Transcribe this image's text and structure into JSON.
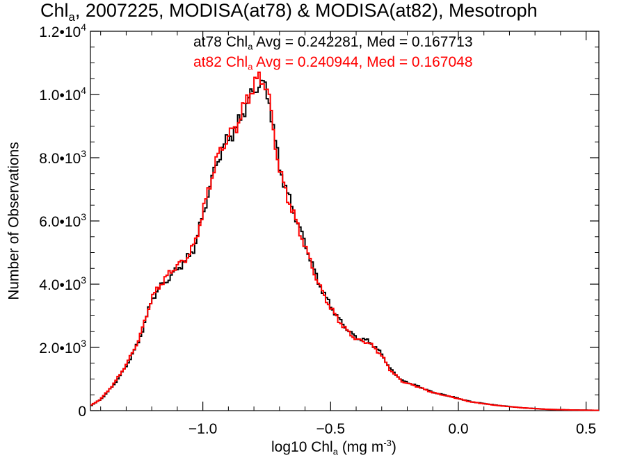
{
  "chart_data": {
    "type": "line",
    "title": {
      "main": "Chl",
      "sub": "a",
      "rest": ", 2007225, MODISA(at78) & MODISA(at82), Mesotroph"
    },
    "xlabel": {
      "main": "log10 Chl",
      "sub": "a",
      "rest": " (mg m",
      "sup": "-3",
      "end": ")"
    },
    "ylabel": "Number of Observations",
    "xlim": [
      -1.44,
      0.55
    ],
    "ylim": [
      0,
      12000
    ],
    "x_ticks": [
      {
        "value": -1.0,
        "label": "−1.0"
      },
      {
        "value": -0.5,
        "label": "−0.5"
      },
      {
        "value": 0.0,
        "label": "0.0"
      },
      {
        "value": 0.5,
        "label": "0.5"
      }
    ],
    "y_ticks": [
      {
        "value": 0,
        "label": "0"
      },
      {
        "value": 2000,
        "label": "2.0•10",
        "exp": "3"
      },
      {
        "value": 4000,
        "label": "4.0•10",
        "exp": "3"
      },
      {
        "value": 6000,
        "label": "6.0•10",
        "exp": "3"
      },
      {
        "value": 8000,
        "label": "8.0•10",
        "exp": "3"
      },
      {
        "value": 10000,
        "label": "1.0•10",
        "exp": "4"
      },
      {
        "value": 12000,
        "label": "1.2•10",
        "exp": "4"
      }
    ],
    "grid": false,
    "legend": "top-center",
    "stats": [
      {
        "name": "at78",
        "pre": "at78 Chl",
        "sub": "a",
        "post": " Avg = 0.242281, Med = 0.167713",
        "color": "#000000"
      },
      {
        "name": "at82",
        "pre": "at82 Chl",
        "sub": "a",
        "post": " Avg = 0.240944, Med = 0.167048",
        "color": "#ff0000"
      }
    ],
    "series": [
      {
        "name": "at78",
        "color": "#000000",
        "x": [
          -1.44,
          -1.4,
          -1.35,
          -1.3,
          -1.25,
          -1.2,
          -1.17,
          -1.13,
          -1.1,
          -1.07,
          -1.03,
          -1.0,
          -0.97,
          -0.95,
          -0.92,
          -0.9,
          -0.87,
          -0.85,
          -0.82,
          -0.8,
          -0.78,
          -0.76,
          -0.74,
          -0.72,
          -0.7,
          -0.67,
          -0.64,
          -0.6,
          -0.55,
          -0.5,
          -0.45,
          -0.4,
          -0.35,
          -0.3,
          -0.27,
          -0.22,
          -0.16,
          -0.1,
          -0.03,
          0.05,
          0.15,
          0.25,
          0.35,
          0.45,
          0.55
        ],
        "values": [
          150,
          350,
          800,
          1400,
          2200,
          3500,
          3900,
          4200,
          4500,
          4700,
          5200,
          6200,
          7100,
          7800,
          8300,
          8650,
          8900,
          9300,
          9850,
          10100,
          10350,
          10300,
          9800,
          8700,
          7700,
          6900,
          6200,
          5300,
          4100,
          3300,
          2700,
          2300,
          2200,
          1800,
          1350,
          950,
          780,
          580,
          450,
          280,
          170,
          90,
          40,
          20,
          10
        ]
      },
      {
        "name": "at82",
        "color": "#ff0000",
        "x": [
          -1.44,
          -1.4,
          -1.35,
          -1.3,
          -1.25,
          -1.2,
          -1.17,
          -1.13,
          -1.1,
          -1.07,
          -1.03,
          -1.0,
          -0.97,
          -0.95,
          -0.92,
          -0.9,
          -0.87,
          -0.85,
          -0.82,
          -0.8,
          -0.78,
          -0.76,
          -0.74,
          -0.72,
          -0.7,
          -0.67,
          -0.64,
          -0.6,
          -0.55,
          -0.5,
          -0.45,
          -0.4,
          -0.35,
          -0.3,
          -0.27,
          -0.22,
          -0.16,
          -0.1,
          -0.03,
          0.05,
          0.15,
          0.25,
          0.35,
          0.45,
          0.55
        ],
        "values": [
          160,
          360,
          830,
          1450,
          2250,
          3550,
          3950,
          4350,
          4600,
          4750,
          5300,
          6300,
          7200,
          7900,
          8350,
          8700,
          8950,
          9400,
          9950,
          10300,
          10500,
          10450,
          9850,
          8650,
          7600,
          6800,
          6100,
          5200,
          4050,
          3250,
          2650,
          2250,
          2150,
          1750,
          1320,
          920,
          760,
          570,
          440,
          275,
          165,
          90,
          40,
          20,
          10
        ]
      }
    ]
  }
}
